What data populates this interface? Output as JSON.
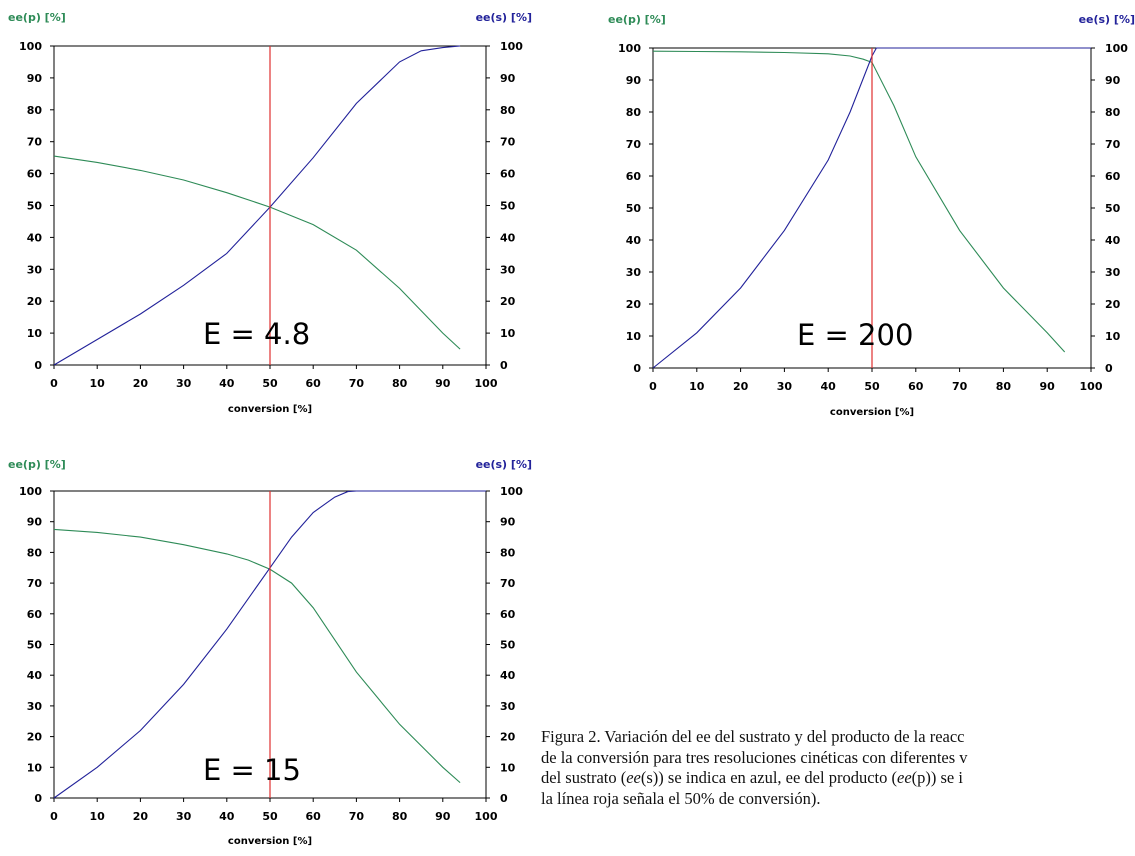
{
  "chart_data": [
    {
      "type": "line",
      "ylabel_left": "ee(p) [%]",
      "ylabel_right": "ee(s) [%]",
      "xlabel": "conversion [%]",
      "annotation": "E =  4.8",
      "xlim": [
        0,
        100
      ],
      "ylim": [
        0,
        100
      ],
      "xticks": [
        "0",
        "10",
        "20",
        "30",
        "40",
        "50",
        "60",
        "70",
        "80",
        "90",
        "100"
      ],
      "yticks": [
        "0",
        "10",
        "20",
        "30",
        "40",
        "50",
        "60",
        "70",
        "80",
        "90",
        "100"
      ],
      "marker_x": 50,
      "grid": false,
      "colors": {
        "ee_p": "#2e8b57",
        "ee_s": "#22229a",
        "marker": "#e03030"
      },
      "series": [
        {
          "key": "ee_p",
          "x": [
            0,
            10,
            20,
            30,
            40,
            50,
            60,
            70,
            80,
            90,
            94
          ],
          "values": [
            65.5,
            63.5,
            61,
            58,
            54,
            49.5,
            44,
            36,
            24,
            10,
            5
          ]
        },
        {
          "key": "ee_s",
          "x": [
            0,
            10,
            20,
            30,
            40,
            50,
            60,
            70,
            80,
            85,
            90,
            94
          ],
          "values": [
            0,
            8,
            16,
            25,
            35,
            49.5,
            65,
            82,
            95,
            98.5,
            99.5,
            100
          ]
        }
      ]
    },
    {
      "type": "line",
      "ylabel_left": "ee(p) [%]",
      "ylabel_right": "ee(s) [%]",
      "xlabel": "conversion [%]",
      "annotation": "E =  200",
      "xlim": [
        0,
        100
      ],
      "ylim": [
        0,
        100
      ],
      "xticks": [
        "0",
        "10",
        "20",
        "30",
        "40",
        "50",
        "60",
        "70",
        "80",
        "90",
        "100"
      ],
      "yticks": [
        "0",
        "10",
        "20",
        "30",
        "40",
        "50",
        "60",
        "70",
        "80",
        "90",
        "100"
      ],
      "marker_x": 50,
      "grid": false,
      "colors": {
        "ee_p": "#2e8b57",
        "ee_s": "#22229a",
        "marker": "#e03030"
      },
      "series": [
        {
          "key": "ee_p",
          "x": [
            0,
            10,
            20,
            30,
            40,
            45,
            48,
            50,
            55,
            60,
            70,
            80,
            90,
            94
          ],
          "values": [
            99,
            98.9,
            98.8,
            98.6,
            98.2,
            97.5,
            96.5,
            95.5,
            82,
            66,
            43,
            25,
            11,
            5
          ]
        },
        {
          "key": "ee_s",
          "x": [
            0,
            10,
            20,
            30,
            40,
            45,
            50,
            51,
            60,
            80,
            100
          ],
          "values": [
            0,
            11,
            25,
            43,
            65,
            80,
            97.5,
            100,
            100,
            100,
            100
          ]
        }
      ]
    },
    {
      "type": "line",
      "ylabel_left": "ee(p) [%]",
      "ylabel_right": "ee(s) [%]",
      "xlabel": "conversion [%]",
      "annotation": "E =  15",
      "xlim": [
        0,
        100
      ],
      "ylim": [
        0,
        100
      ],
      "xticks": [
        "0",
        "10",
        "20",
        "30",
        "40",
        "50",
        "60",
        "70",
        "80",
        "90",
        "100"
      ],
      "yticks": [
        "0",
        "10",
        "20",
        "30",
        "40",
        "50",
        "60",
        "70",
        "80",
        "90",
        "100"
      ],
      "marker_x": 50,
      "grid": false,
      "colors": {
        "ee_p": "#2e8b57",
        "ee_s": "#22229a",
        "marker": "#e03030"
      },
      "series": [
        {
          "key": "ee_p",
          "x": [
            0,
            10,
            20,
            30,
            40,
            45,
            50,
            55,
            60,
            70,
            80,
            90,
            94
          ],
          "values": [
            87.5,
            86.5,
            85,
            82.5,
            79.5,
            77.5,
            74.5,
            70,
            62,
            41,
            24,
            10,
            5
          ]
        },
        {
          "key": "ee_s",
          "x": [
            0,
            10,
            20,
            30,
            40,
            50,
            55,
            60,
            65,
            68,
            70,
            80,
            100
          ],
          "values": [
            0,
            10,
            22,
            37,
            55,
            75,
            85,
            93,
            98,
            99.8,
            100,
            100,
            100
          ]
        }
      ]
    }
  ],
  "caption": {
    "lines": [
      "Figura 2. Variación del ee del sustrato y del producto de la reacc",
      "de la conversión para tres resoluciones cinéticas con diferentes v",
      "del sustrato (ee(s)) se indica en azul, ee del producto (ee(p)) se i",
      "la línea roja señala el 50% de conversión)."
    ]
  }
}
